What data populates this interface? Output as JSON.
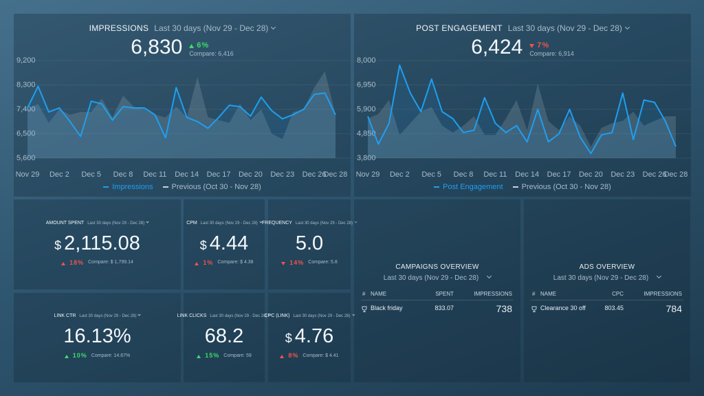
{
  "impressions": {
    "title": "IMPRESSIONS",
    "period": "Last 30 days (Nov 29 - Dec 28)",
    "value": "6,830",
    "change": "6%",
    "trend": "up",
    "change_color": "#3ddc6a",
    "compare": "Compare: 6,416",
    "chart": {
      "type": "line",
      "categories": [
        "Nov 29",
        null,
        null,
        "Dec 2",
        null,
        null,
        "Dec 5",
        null,
        null,
        "Dec 8",
        null,
        null,
        "Dec 11",
        null,
        null,
        "Dec 14",
        null,
        null,
        "Dec 17",
        null,
        null,
        "Dec 20",
        null,
        null,
        "Dec 23",
        null,
        null,
        "Dec 26",
        null,
        "Dec 28"
      ],
      "series": [
        {
          "name": "Impressions",
          "color": "#1e9ff2",
          "values": [
            7450,
            8250,
            7300,
            7450,
            6950,
            6400,
            7700,
            7600,
            7000,
            7500,
            7450,
            7450,
            7200,
            6350,
            8200,
            7100,
            6950,
            6700,
            7100,
            7550,
            7500,
            7150,
            7850,
            7350,
            7050,
            7200,
            7400,
            7950,
            8000,
            7200
          ]
        },
        {
          "name": "Previous (Oct 30 - Nov 28)",
          "color": "#8a9aa6",
          "values": [
            7400,
            7600,
            6900,
            7400,
            7200,
            7300,
            7300,
            7800,
            7100,
            7900,
            7500,
            7400,
            7200,
            7100,
            7500,
            7100,
            8600,
            7100,
            7000,
            6900,
            7600,
            7000,
            7400,
            6500,
            6300,
            7300,
            7400,
            8200,
            8800,
            7200
          ]
        }
      ],
      "ylim": [
        5600,
        9200
      ],
      "yticks": [
        {
          "value": 5600,
          "label": "5,600"
        },
        {
          "value": 6500,
          "label": "6,500"
        },
        {
          "value": 7400,
          "label": "7,400"
        },
        {
          "value": 8300,
          "label": "8,300"
        },
        {
          "value": 9200,
          "label": "9,200"
        }
      ]
    }
  },
  "post_engagement": {
    "title": "POST ENGAGEMENT",
    "period": "Last 30 days (Nov 29 - Dec 28)",
    "value": "6,424",
    "change": "7%",
    "trend": "down",
    "change_color": "#f0524f",
    "compare": "Compare: 6,914",
    "chart": {
      "type": "line",
      "categories": [
        "Nov 29",
        null,
        null,
        "Dec 2",
        null,
        null,
        "Dec 5",
        null,
        null,
        "Dec 8",
        null,
        null,
        "Dec 11",
        null,
        null,
        "Dec 14",
        null,
        null,
        "Dec 17",
        null,
        null,
        "Dec 20",
        null,
        null,
        "Dec 23",
        null,
        null,
        "Dec 26",
        null,
        "Dec 28"
      ],
      "series": [
        {
          "name": "Post Engagement",
          "color": "#1e9ff2",
          "values": [
            5600,
            4400,
            5300,
            7800,
            6600,
            5800,
            7200,
            5800,
            5500,
            4900,
            5000,
            6400,
            5300,
            4900,
            5200,
            4500,
            5900,
            4500,
            4850,
            5900,
            4700,
            4000,
            4800,
            4900,
            6600,
            4600,
            6300,
            6200,
            5400,
            4300
          ]
        },
        {
          "name": "Previous (Oct 30 - Nov 28)",
          "color": "#8a9aa6",
          "values": [
            5500,
            5700,
            6300,
            4800,
            5300,
            5800,
            6000,
            5200,
            4900,
            5200,
            5600,
            4800,
            4800,
            5500,
            6300,
            5000,
            7000,
            5400,
            5000,
            5600,
            5200,
            4300,
            5100,
            5300,
            5400,
            5800,
            5200,
            5400,
            5600,
            5600
          ]
        }
      ],
      "ylim": [
        3800,
        8000
      ],
      "yticks": [
        {
          "value": 3800,
          "label": "3,800"
        },
        {
          "value": 4850,
          "label": "4,850"
        },
        {
          "value": 5900,
          "label": "5,900"
        },
        {
          "value": 6950,
          "label": "6,950"
        },
        {
          "value": 8000,
          "label": "8,000"
        }
      ]
    }
  },
  "kpis": [
    {
      "title": "AMOUNT SPENT",
      "period": "Last 30 days (Nov 29 - Dec 28)",
      "currency": "$",
      "value": "2,115.08",
      "change": "18%",
      "trend": "up",
      "change_color": "#f0524f",
      "compare": "Compare: $ 1,799.14"
    },
    {
      "title": "CPM",
      "period": "Last 30 days (Nov 29 - Dec 28)",
      "currency": "$",
      "value": "4.44",
      "change": "1%",
      "trend": "up",
      "change_color": "#f0524f",
      "compare": "Compare: $ 4.38"
    },
    {
      "title": "FREQUENCY",
      "period": "Last 30 days (Nov 29 - Dec 28)",
      "value": "5.0",
      "change": "14%",
      "trend": "down",
      "change_color": "#f0524f",
      "compare": "Compare: 5.8"
    },
    {
      "title": "LINK CTR",
      "period": "Last 30 days (Nov 29 - Dec 28)",
      "value": "16.13%",
      "change": "10%",
      "trend": "up",
      "change_color": "#3ddc6a",
      "compare": "Compare: 14.67%"
    },
    {
      "title": "LINK CLICKS",
      "period": "Last 30 days (Nov 29 - Dec 28)",
      "value": "68.2",
      "change": "15%",
      "trend": "up",
      "change_color": "#3ddc6a",
      "compare": "Compare: 59"
    },
    {
      "title": "CPC (LINK)",
      "period": "Last 30 days (Nov 29 - Dec 28)",
      "currency": "$",
      "value": "4.76",
      "change": "8%",
      "trend": "up",
      "change_color": "#f0524f",
      "compare": "Compare: $ 4.41"
    }
  ],
  "tables": [
    {
      "title": "CAMPAIGNS OVERVIEW",
      "period": "Last 30 days (Nov 29 - Dec 28)",
      "header": [
        "#",
        "NAME",
        "SPENT",
        "IMPRESSIONS"
      ],
      "rows": [
        [
          "Black friday",
          "833.07",
          "738"
        ]
      ]
    },
    {
      "title": "ADS OVERVIEW",
      "period": "Last 30 days (Nov 29 - Dec 28)",
      "header": [
        "#",
        "NAME",
        "CPC",
        "IMPRESSIONS"
      ],
      "rows": [
        [
          "Clearance 30 off",
          "803.45",
          "784"
        ]
      ]
    }
  ]
}
